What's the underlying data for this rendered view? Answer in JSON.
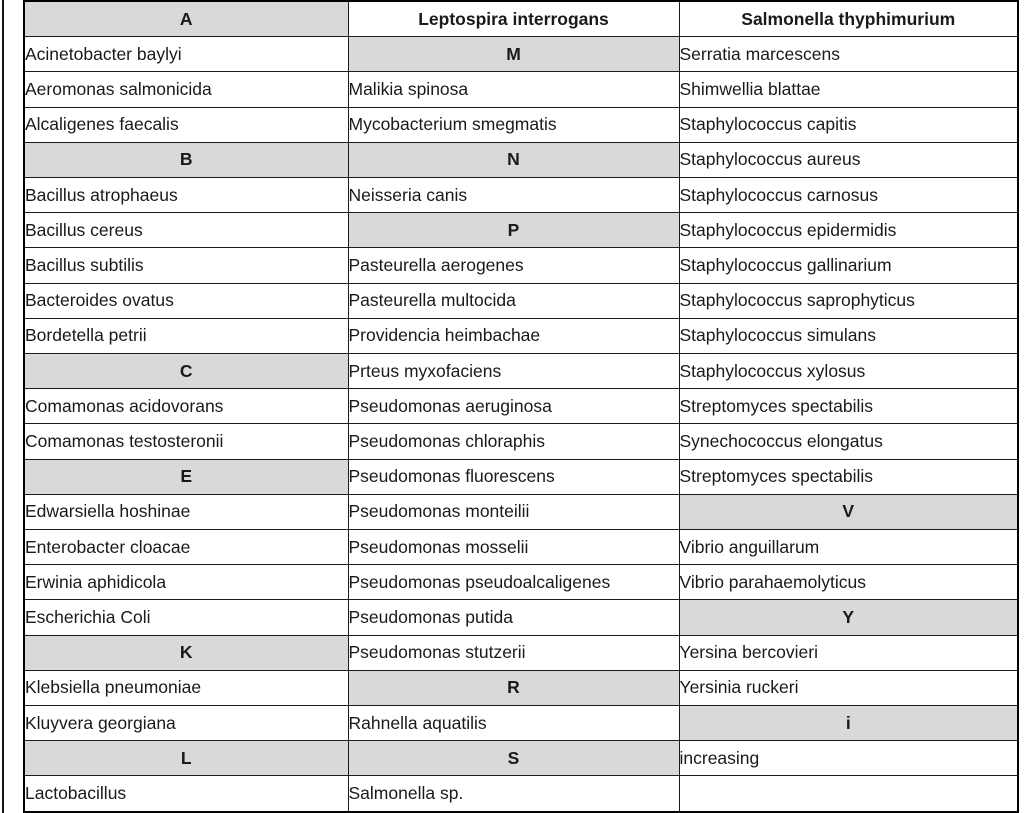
{
  "colors": {
    "letter_header_bg": "#d9d9d9",
    "cell_bg": "#ffffff",
    "border": "#1c1c1c",
    "text": "#1a1a1a"
  },
  "table": {
    "letter_headers": [
      "A",
      "B",
      "C",
      "E",
      "K",
      "L",
      "M",
      "N",
      "P",
      "R",
      "S",
      "V",
      "Y",
      "i"
    ],
    "rows": [
      [
        {
          "text": "A",
          "style": "letter"
        },
        {
          "text": "Leptospira interrogans",
          "style": "bold"
        },
        {
          "text": "Salmonella thyphimurium",
          "style": "bold"
        }
      ],
      [
        {
          "text": "Acinetobacter baylyi",
          "style": "plain"
        },
        {
          "text": "M",
          "style": "letter"
        },
        {
          "text": "Serratia marcescens",
          "style": "plain"
        }
      ],
      [
        {
          "text": "Aeromonas salmonicida",
          "style": "plain"
        },
        {
          "text": "Malikia spinosa",
          "style": "plain"
        },
        {
          "text": "Shimwellia blattae",
          "style": "plain"
        }
      ],
      [
        {
          "text": "Alcaligenes faecalis",
          "style": "plain"
        },
        {
          "text": "Mycobacterium smegmatis",
          "style": "plain"
        },
        {
          "text": "Staphylococcus capitis",
          "style": "plain"
        }
      ],
      [
        {
          "text": "B",
          "style": "letter"
        },
        {
          "text": "N",
          "style": "letter"
        },
        {
          "text": "Staphylococcus aureus",
          "style": "plain"
        }
      ],
      [
        {
          "text": "Bacillus atrophaeus",
          "style": "plain"
        },
        {
          "text": "Neisseria canis",
          "style": "plain"
        },
        {
          "text": "Staphylococcus carnosus",
          "style": "plain"
        }
      ],
      [
        {
          "text": "Bacillus cereus",
          "style": "plain"
        },
        {
          "text": "P",
          "style": "letter"
        },
        {
          "text": "Staphylococcus epidermidis",
          "style": "plain"
        }
      ],
      [
        {
          "text": "Bacillus subtilis",
          "style": "plain"
        },
        {
          "text": "Pasteurella aerogenes",
          "style": "plain"
        },
        {
          "text": "Staphylococcus gallinarium",
          "style": "plain"
        }
      ],
      [
        {
          "text": "Bacteroides ovatus",
          "style": "plain"
        },
        {
          "text": "Pasteurella multocida",
          "style": "plain"
        },
        {
          "text": "Staphylococcus saprophyticus",
          "style": "plain"
        }
      ],
      [
        {
          "text": "Bordetella petrii",
          "style": "plain"
        },
        {
          "text": "Providencia heimbachae",
          "style": "plain"
        },
        {
          "text": "Staphylococcus simulans",
          "style": "plain"
        }
      ],
      [
        {
          "text": "C",
          "style": "letter"
        },
        {
          "text": "Prteus myxofaciens",
          "style": "plain"
        },
        {
          "text": "Staphylococcus xylosus",
          "style": "plain"
        }
      ],
      [
        {
          "text": "Comamonas acidovorans",
          "style": "plain"
        },
        {
          "text": "Pseudomonas aeruginosa",
          "style": "plain"
        },
        {
          "text": "Streptomyces spectabilis",
          "style": "plain"
        }
      ],
      [
        {
          "text": "Comamonas testosteronii",
          "style": "plain"
        },
        {
          "text": "Pseudomonas chloraphis",
          "style": "plain"
        },
        {
          "text": "Synechococcus elongatus",
          "style": "plain"
        }
      ],
      [
        {
          "text": "E",
          "style": "letter"
        },
        {
          "text": "Pseudomonas fluorescens",
          "style": "plain"
        },
        {
          "text": "Streptomyces spectabilis",
          "style": "plain"
        }
      ],
      [
        {
          "text": "Edwarsiella hoshinae",
          "style": "plain"
        },
        {
          "text": "Pseudomonas monteilii",
          "style": "plain"
        },
        {
          "text": "V",
          "style": "letter"
        }
      ],
      [
        {
          "text": "Enterobacter cloacae",
          "style": "plain"
        },
        {
          "text": "Pseudomonas mosselii",
          "style": "plain"
        },
        {
          "text": "Vibrio anguillarum",
          "style": "plain"
        }
      ],
      [
        {
          "text": "Erwinia aphidicola",
          "style": "plain"
        },
        {
          "text": "Pseudomonas pseudoalcaligenes",
          "style": "plain"
        },
        {
          "text": "Vibrio parahaemolyticus",
          "style": "plain"
        }
      ],
      [
        {
          "text": "Escherichia Coli",
          "style": "plain"
        },
        {
          "text": "Pseudomonas putida",
          "style": "plain"
        },
        {
          "text": "Y",
          "style": "letter"
        }
      ],
      [
        {
          "text": "K",
          "style": "letter"
        },
        {
          "text": "Pseudomonas stutzerii",
          "style": "plain"
        },
        {
          "text": "Yersina bercovieri",
          "style": "plain"
        }
      ],
      [
        {
          "text": "Klebsiella pneumoniae",
          "style": "plain"
        },
        {
          "text": "R",
          "style": "letter"
        },
        {
          "text": "Yersinia ruckeri",
          "style": "plain"
        }
      ],
      [
        {
          "text": "Kluyvera georgiana",
          "style": "plain"
        },
        {
          "text": "Rahnella aquatilis",
          "style": "plain"
        },
        {
          "text": "i",
          "style": "letter"
        }
      ],
      [
        {
          "text": "L",
          "style": "letter"
        },
        {
          "text": "S",
          "style": "letter"
        },
        {
          "text": "increasing",
          "style": "plain"
        }
      ],
      [
        {
          "text": "Lactobacillus",
          "style": "plain"
        },
        {
          "text": "Salmonella sp.",
          "style": "plain"
        },
        {
          "text": "",
          "style": "empty"
        }
      ]
    ]
  }
}
